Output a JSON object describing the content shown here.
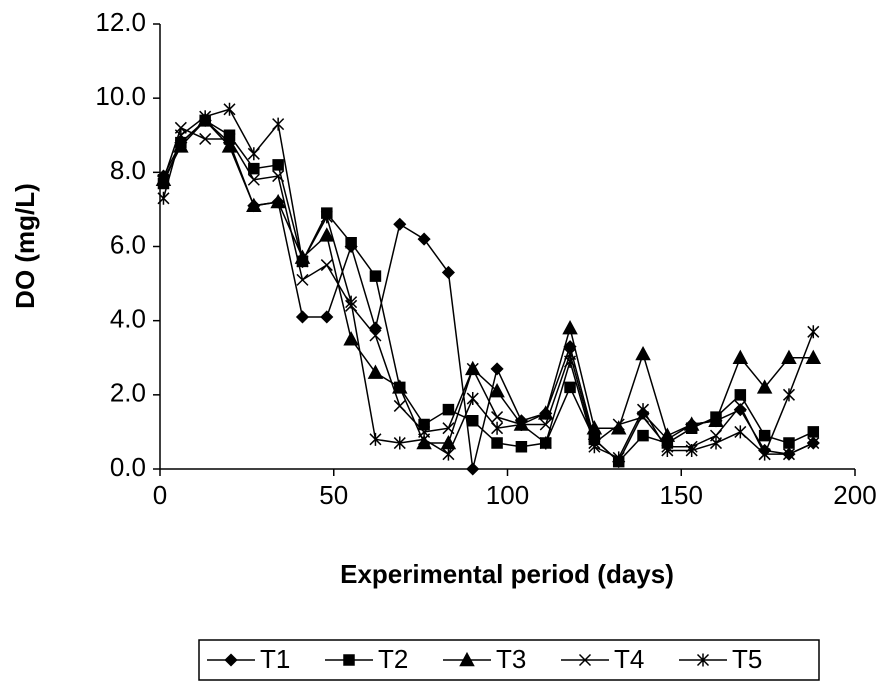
{
  "chart_data": {
    "type": "line",
    "x_label": "Experimental period (days)",
    "y_label": "DO (mg/L)",
    "x": [
      1,
      6,
      13,
      20,
      27,
      34,
      41,
      48,
      55,
      62,
      69,
      76,
      83,
      90,
      97,
      104,
      111,
      118,
      125,
      132,
      139,
      146,
      153,
      160,
      167,
      174,
      181,
      188
    ],
    "series": [
      {
        "name": "T1",
        "color": "#000000",
        "marker": "diamond",
        "values": [
          7.9,
          8.8,
          9.4,
          8.8,
          7.1,
          7.2,
          4.1,
          4.1,
          6.0,
          3.8,
          6.6,
          6.2,
          5.3,
          0.0,
          2.7,
          1.3,
          1.5,
          3.3,
          0.8,
          0.2,
          1.5,
          0.8,
          1.2,
          1.3,
          1.6,
          0.5,
          0.4,
          0.7
        ]
      },
      {
        "name": "T2",
        "color": "#000000",
        "marker": "square",
        "values": [
          7.7,
          8.8,
          9.4,
          9.0,
          8.1,
          8.2,
          5.6,
          6.9,
          6.1,
          5.2,
          2.2,
          1.2,
          1.6,
          1.3,
          0.7,
          0.6,
          0.7,
          2.2,
          0.8,
          0.2,
          0.9,
          0.7,
          1.1,
          1.4,
          2.0,
          0.9,
          0.7,
          1.0
        ]
      },
      {
        "name": "T3",
        "color": "#000000",
        "marker": "triangle",
        "values": [
          7.8,
          8.7,
          9.4,
          8.7,
          7.1,
          7.2,
          5.7,
          6.3,
          3.5,
          2.6,
          2.2,
          0.7,
          0.7,
          2.7,
          2.1,
          1.2,
          1.5,
          3.8,
          1.1,
          1.1,
          3.1,
          0.9,
          1.2,
          1.3,
          3.0,
          2.2,
          3.0,
          3.0
        ]
      },
      {
        "name": "T4",
        "color": "#000000",
        "marker": "x",
        "values": [
          7.8,
          9.2,
          8.9,
          8.9,
          7.8,
          7.9,
          5.1,
          5.5,
          4.4,
          3.6,
          1.7,
          1.0,
          1.1,
          2.7,
          1.4,
          1.2,
          1.2,
          3.1,
          0.7,
          1.2,
          1.4,
          0.6,
          0.6,
          0.9,
          1.7,
          0.4,
          0.4,
          0.7
        ]
      },
      {
        "name": "T5",
        "color": "#000000",
        "marker": "star",
        "values": [
          7.3,
          9.0,
          9.5,
          9.7,
          8.5,
          9.3,
          5.6,
          6.8,
          4.5,
          0.8,
          0.7,
          0.8,
          0.4,
          1.9,
          1.1,
          1.2,
          0.7,
          2.9,
          0.6,
          0.3,
          1.6,
          0.5,
          0.5,
          0.7,
          1.0,
          0.4,
          2.0,
          3.7
        ]
      }
    ],
    "xlim": [
      0,
      200
    ],
    "xticks": [
      0,
      50,
      100,
      150,
      200
    ],
    "ylim": [
      0,
      12
    ],
    "yticks": [
      {
        "value": 0,
        "label": "0.0"
      },
      {
        "value": 2,
        "label": "2.0"
      },
      {
        "value": 4,
        "label": "4.0"
      },
      {
        "value": 6,
        "label": "6.0"
      },
      {
        "value": 8,
        "label": "8.0"
      },
      {
        "value": 10,
        "label": "10.0"
      },
      {
        "value": 12,
        "label": "12.0"
      }
    ],
    "grid": false,
    "legend": "bottom"
  }
}
